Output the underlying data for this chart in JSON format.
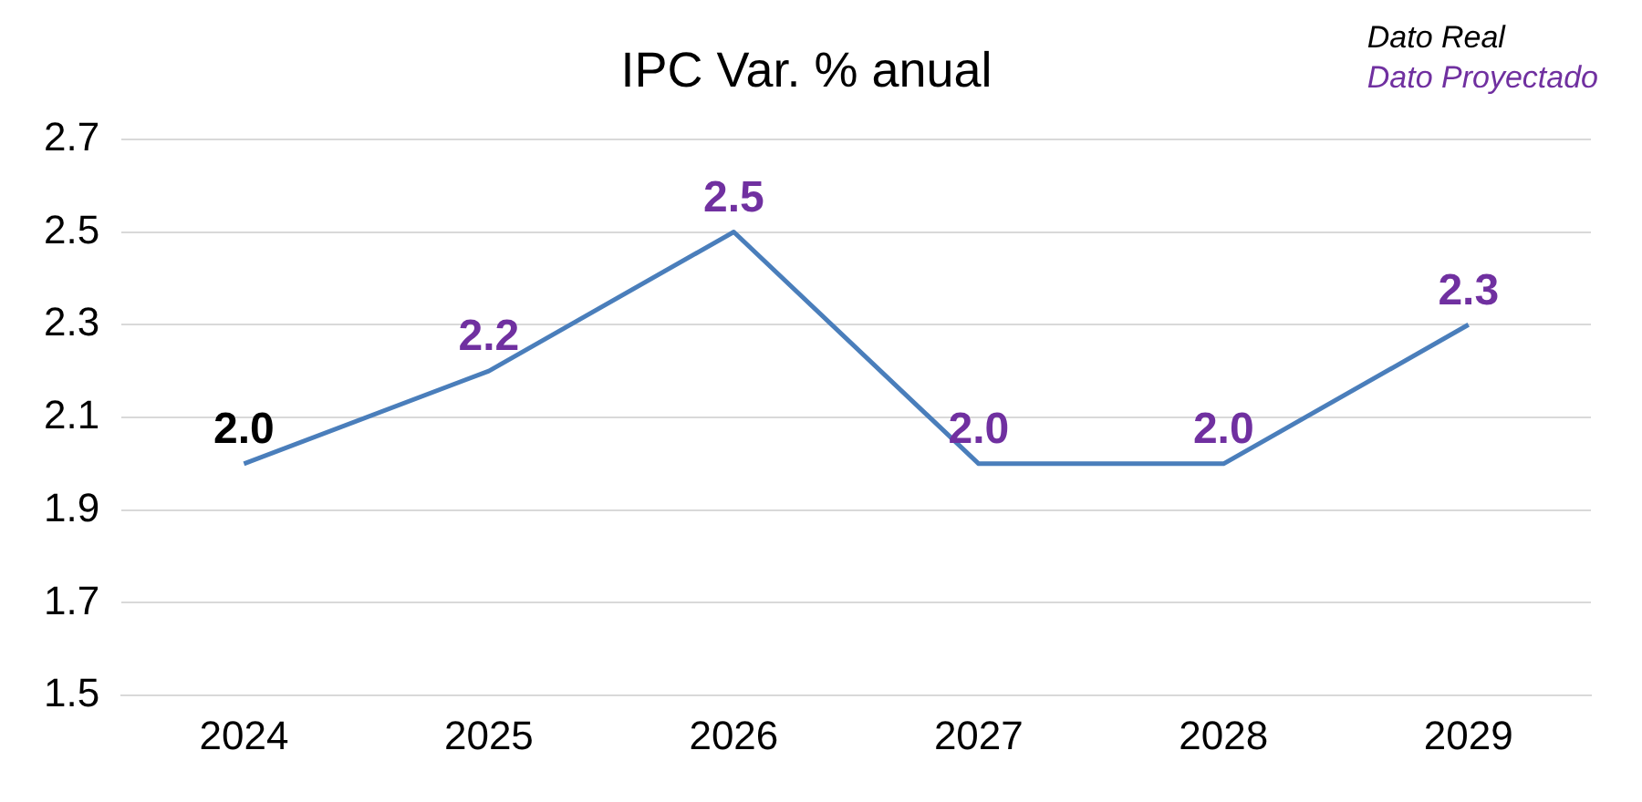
{
  "chart_data": {
    "type": "line",
    "title": "IPC Var. % anual",
    "categories": [
      "2024",
      "2025",
      "2026",
      "2027",
      "2028",
      "2029"
    ],
    "series": [
      {
        "color": "#4a7ebb",
        "values": [
          2.0,
          2.2,
          2.5,
          2.0,
          2.0,
          2.3
        ],
        "value_labels": [
          "2.0",
          "2.2",
          "2.5",
          "2.0",
          "2.0",
          "2.3"
        ]
      }
    ],
    "ylim": [
      1.5,
      2.7
    ],
    "yticks": [
      1.5,
      1.7,
      1.9,
      2.1,
      2.3,
      2.5,
      2.7
    ],
    "grid": "y",
    "legend": false,
    "marker": "none",
    "line_style": "solid",
    "annotations": [
      "Dato Real",
      "Dato Proyectado"
    ]
  }
}
